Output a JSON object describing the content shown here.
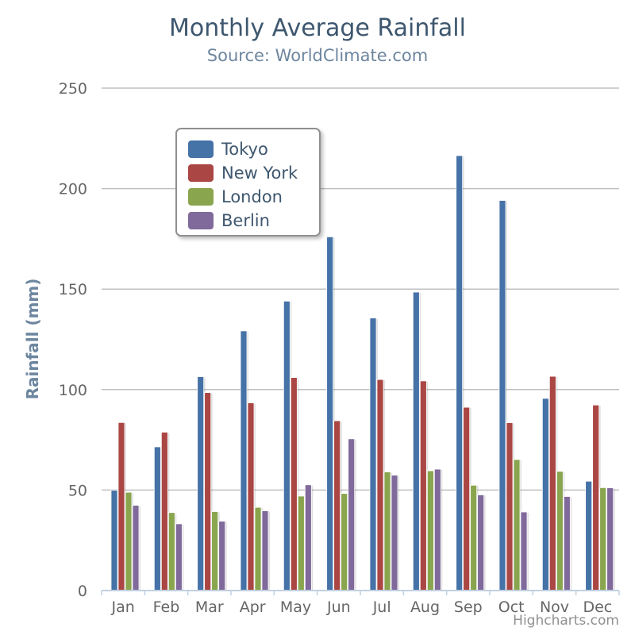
{
  "title": "Monthly Average Rainfall",
  "subtitle": "Source: WorldClimate.com",
  "credits": "Highcharts.com",
  "chart_data": {
    "type": "bar",
    "title": "Monthly Average Rainfall",
    "subtitle": "Source: WorldClimate.com",
    "xlabel": "",
    "ylabel": "Rainfall (mm)",
    "ylim": [
      0,
      250
    ],
    "yticks": [
      0,
      50,
      100,
      150,
      200,
      250
    ],
    "grid": true,
    "legend_position": "top-left",
    "categories": [
      "Jan",
      "Feb",
      "Mar",
      "Apr",
      "May",
      "Jun",
      "Jul",
      "Aug",
      "Sep",
      "Oct",
      "Nov",
      "Dec"
    ],
    "series": [
      {
        "name": "Tokyo",
        "color": "#4572a7",
        "values": [
          49.9,
          71.5,
          106.4,
          129.2,
          144.0,
          176.0,
          135.6,
          148.5,
          216.4,
          194.1,
          95.6,
          54.4
        ]
      },
      {
        "name": "New York",
        "color": "#aa4643",
        "values": [
          83.6,
          78.8,
          98.5,
          93.4,
          106.0,
          84.5,
          105.0,
          104.3,
          91.2,
          83.5,
          106.6,
          92.3
        ]
      },
      {
        "name": "London",
        "color": "#89a54e",
        "values": [
          48.9,
          38.8,
          39.3,
          41.4,
          47.0,
          48.3,
          59.0,
          59.6,
          52.4,
          65.2,
          59.3,
          51.2
        ]
      },
      {
        "name": "Berlin",
        "color": "#80699b",
        "values": [
          42.4,
          33.2,
          34.5,
          39.7,
          52.6,
          75.5,
          57.4,
          60.4,
          47.6,
          39.1,
          46.8,
          51.1
        ]
      }
    ]
  }
}
